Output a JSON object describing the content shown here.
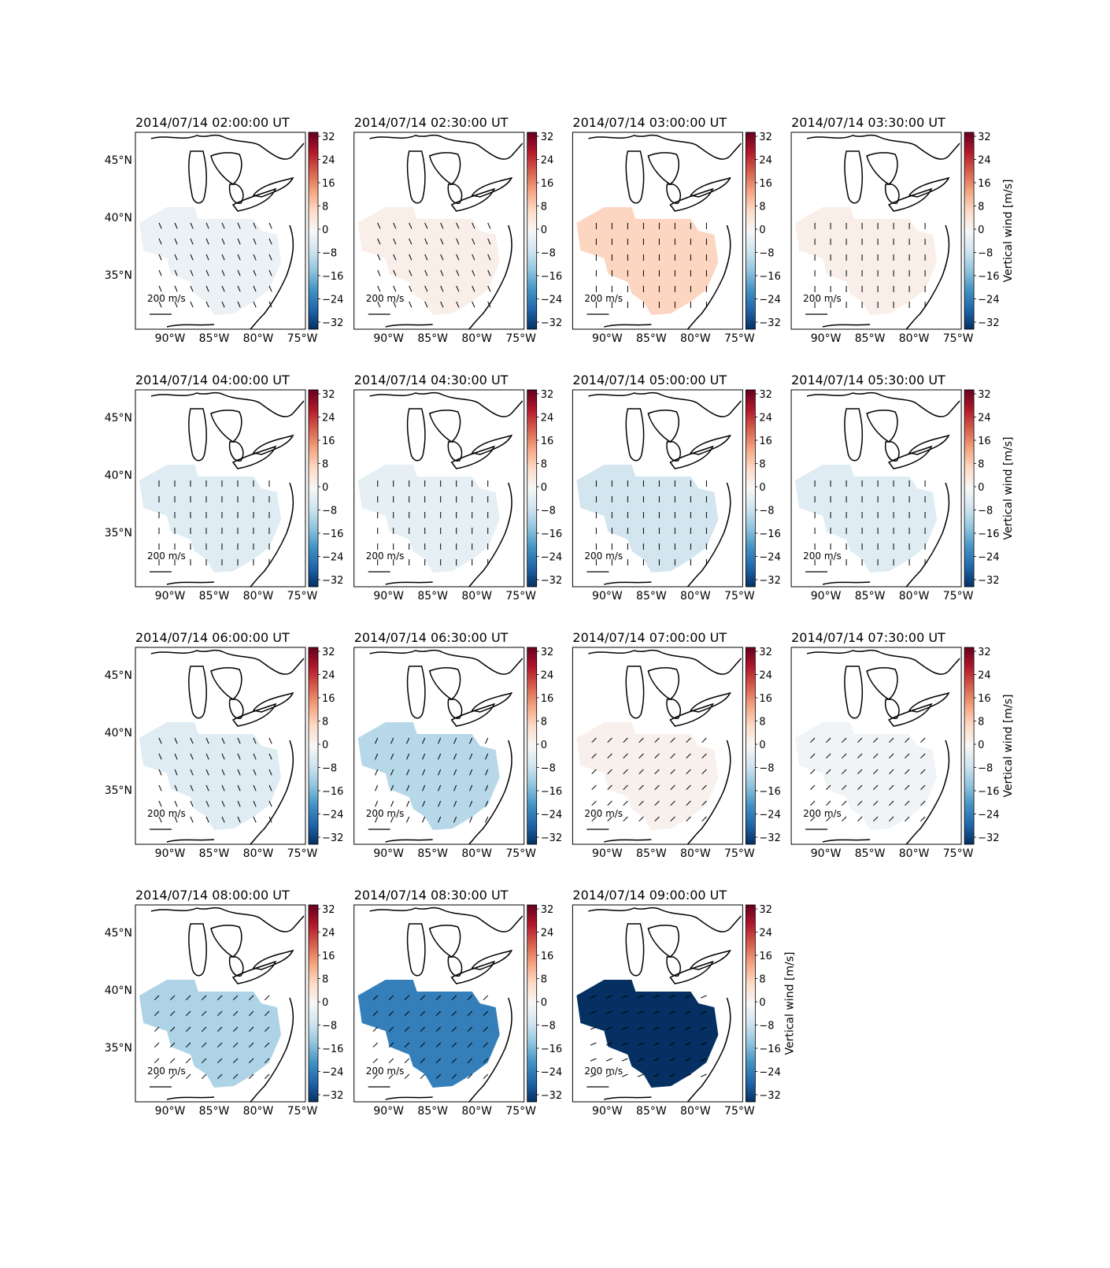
{
  "figure": {
    "colorbar_label": "Vertical wind [m/s]",
    "scale_label": "200 m/s",
    "colorbar_ticks": [
      "32",
      "24",
      "16",
      "8",
      "0",
      "−8",
      "−16",
      "−24",
      "−32"
    ],
    "lon_ticks": [
      "90°W",
      "85°W",
      "80°W",
      "75°W"
    ],
    "lat_ticks": [
      "45°N",
      "40°N",
      "35°N"
    ]
  },
  "chart_data": [
    {
      "type": "heatmap",
      "title": "2014/07/14 02:00:00 UT",
      "vertical_wind": -2,
      "arrow_dir": "south-southeast",
      "has_colorbar_label": false
    },
    {
      "type": "heatmap",
      "title": "2014/07/14 02:30:00 UT",
      "vertical_wind": 2,
      "arrow_dir": "south-southeast",
      "has_colorbar_label": false
    },
    {
      "type": "heatmap",
      "title": "2014/07/14 03:00:00 UT",
      "vertical_wind": 7,
      "arrow_dir": "south",
      "has_colorbar_label": false
    },
    {
      "type": "heatmap",
      "title": "2014/07/14 03:30:00 UT",
      "vertical_wind": 2,
      "arrow_dir": "south",
      "has_colorbar_label": true
    },
    {
      "type": "heatmap",
      "title": "2014/07/14 04:00:00 UT",
      "vertical_wind": -4,
      "arrow_dir": "south",
      "has_colorbar_label": false
    },
    {
      "type": "heatmap",
      "title": "2014/07/14 04:30:00 UT",
      "vertical_wind": -3,
      "arrow_dir": "south",
      "has_colorbar_label": false
    },
    {
      "type": "heatmap",
      "title": "2014/07/14 05:00:00 UT",
      "vertical_wind": -6,
      "arrow_dir": "south",
      "has_colorbar_label": false
    },
    {
      "type": "heatmap",
      "title": "2014/07/14 05:30:00 UT",
      "vertical_wind": -4,
      "arrow_dir": "south",
      "has_colorbar_label": true
    },
    {
      "type": "heatmap",
      "title": "2014/07/14 06:00:00 UT",
      "vertical_wind": -4,
      "arrow_dir": "south-southeast",
      "has_colorbar_label": false
    },
    {
      "type": "heatmap",
      "title": "2014/07/14 06:30:00 UT",
      "vertical_wind": -9,
      "arrow_dir": "south-southwest",
      "has_colorbar_label": false
    },
    {
      "type": "heatmap",
      "title": "2014/07/14 07:00:00 UT",
      "vertical_wind": 1.5,
      "arrow_dir": "southwest",
      "has_colorbar_label": false
    },
    {
      "type": "heatmap",
      "title": "2014/07/14 07:30:00 UT",
      "vertical_wind": -1,
      "arrow_dir": "southwest",
      "has_colorbar_label": true
    },
    {
      "type": "heatmap",
      "title": "2014/07/14 08:00:00 UT",
      "vertical_wind": -10,
      "arrow_dir": "southwest",
      "has_colorbar_label": false
    },
    {
      "type": "heatmap",
      "title": "2014/07/14 08:30:00 UT",
      "vertical_wind": -22,
      "arrow_dir": "southwest",
      "has_colorbar_label": false
    },
    {
      "type": "heatmap",
      "title": "2014/07/14 09:00:00 UT",
      "vertical_wind": -32,
      "arrow_dir": "west-southwest",
      "has_colorbar_label": true
    }
  ]
}
